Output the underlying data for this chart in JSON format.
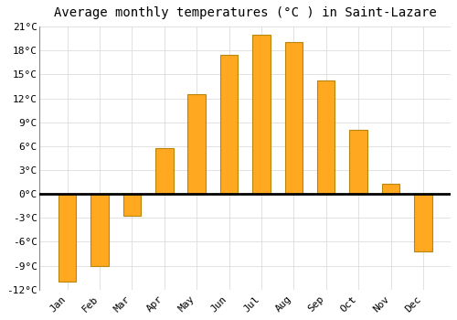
{
  "title": "Average monthly temperatures (°C ) in Saint-Lazare",
  "months": [
    "Jan",
    "Feb",
    "Mar",
    "Apr",
    "May",
    "Jun",
    "Jul",
    "Aug",
    "Sep",
    "Oct",
    "Nov",
    "Dec"
  ],
  "values": [
    -11,
    -9,
    -2.7,
    5.8,
    12.5,
    17.5,
    20,
    19,
    14.2,
    8,
    1.3,
    -7.2
  ],
  "bar_color": "#FFA820",
  "bar_edge_color": "#B8860B",
  "background_color": "#FFFFFF",
  "plot_bg_color": "#FFFFFF",
  "ylim": [
    -12,
    21
  ],
  "yticks": [
    -12,
    -9,
    -6,
    -3,
    0,
    3,
    6,
    9,
    12,
    15,
    18,
    21
  ],
  "grid_color": "#DDDDDD",
  "title_fontsize": 10,
  "tick_fontsize": 8
}
